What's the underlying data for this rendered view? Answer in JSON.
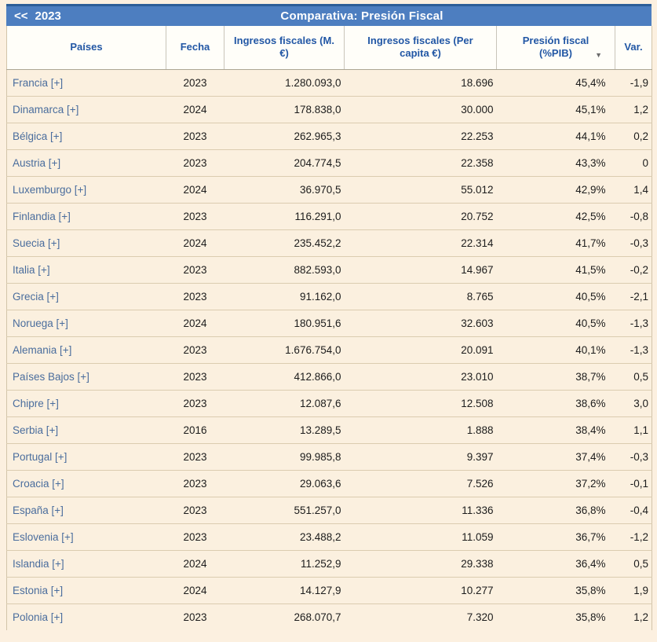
{
  "header": {
    "prev_icon": "<<",
    "year": "2023",
    "title": "Comparativa: Presión Fiscal"
  },
  "colors": {
    "bar_blue": "#4d7ec0",
    "bar_top_edge": "#2d5e98",
    "page_background": "#fcf0e0",
    "header_text_blue": "#2257a5",
    "link_blue": "#4a6d9d"
  },
  "table": {
    "columns": {
      "paises": "Países",
      "fecha": "Fecha",
      "ingresos": "Ingresos fiscales (M. €)",
      "per_capita": "Ingresos fiscales (Per capita €)",
      "presion": "Presión fiscal (%PIB)",
      "var": "Var."
    },
    "sort_icon": "▼",
    "rows": [
      {
        "country": "Francia [+]",
        "fecha": "2023",
        "ingresos": "1.280.093,0",
        "per_capita": "18.696",
        "presion": "45,4%",
        "var": "-1,9"
      },
      {
        "country": "Dinamarca [+]",
        "fecha": "2024",
        "ingresos": "178.838,0",
        "per_capita": "30.000",
        "presion": "45,1%",
        "var": "1,2"
      },
      {
        "country": "Bélgica [+]",
        "fecha": "2023",
        "ingresos": "262.965,3",
        "per_capita": "22.253",
        "presion": "44,1%",
        "var": "0,2"
      },
      {
        "country": "Austria [+]",
        "fecha": "2023",
        "ingresos": "204.774,5",
        "per_capita": "22.358",
        "presion": "43,3%",
        "var": "0"
      },
      {
        "country": "Luxemburgo [+]",
        "fecha": "2024",
        "ingresos": "36.970,5",
        "per_capita": "55.012",
        "presion": "42,9%",
        "var": "1,4"
      },
      {
        "country": "Finlandia [+]",
        "fecha": "2023",
        "ingresos": "116.291,0",
        "per_capita": "20.752",
        "presion": "42,5%",
        "var": "-0,8"
      },
      {
        "country": "Suecia [+]",
        "fecha": "2024",
        "ingresos": "235.452,2",
        "per_capita": "22.314",
        "presion": "41,7%",
        "var": "-0,3"
      },
      {
        "country": "Italia [+]",
        "fecha": "2023",
        "ingresos": "882.593,0",
        "per_capita": "14.967",
        "presion": "41,5%",
        "var": "-0,2"
      },
      {
        "country": "Grecia [+]",
        "fecha": "2023",
        "ingresos": "91.162,0",
        "per_capita": "8.765",
        "presion": "40,5%",
        "var": "-2,1"
      },
      {
        "country": "Noruega [+]",
        "fecha": "2024",
        "ingresos": "180.951,6",
        "per_capita": "32.603",
        "presion": "40,5%",
        "var": "-1,3"
      },
      {
        "country": "Alemania [+]",
        "fecha": "2023",
        "ingresos": "1.676.754,0",
        "per_capita": "20.091",
        "presion": "40,1%",
        "var": "-1,3"
      },
      {
        "country": "Países Bajos [+]",
        "fecha": "2023",
        "ingresos": "412.866,0",
        "per_capita": "23.010",
        "presion": "38,7%",
        "var": "0,5"
      },
      {
        "country": "Chipre [+]",
        "fecha": "2023",
        "ingresos": "12.087,6",
        "per_capita": "12.508",
        "presion": "38,6%",
        "var": "3,0"
      },
      {
        "country": "Serbia [+]",
        "fecha": "2016",
        "ingresos": "13.289,5",
        "per_capita": "1.888",
        "presion": "38,4%",
        "var": "1,1"
      },
      {
        "country": "Portugal [+]",
        "fecha": "2023",
        "ingresos": "99.985,8",
        "per_capita": "9.397",
        "presion": "37,4%",
        "var": "-0,3"
      },
      {
        "country": "Croacia [+]",
        "fecha": "2023",
        "ingresos": "29.063,6",
        "per_capita": "7.526",
        "presion": "37,2%",
        "var": "-0,1"
      },
      {
        "country": "España [+]",
        "fecha": "2023",
        "ingresos": "551.257,0",
        "per_capita": "11.336",
        "presion": "36,8%",
        "var": "-0,4"
      },
      {
        "country": "Eslovenia [+]",
        "fecha": "2023",
        "ingresos": "23.488,2",
        "per_capita": "11.059",
        "presion": "36,7%",
        "var": "-1,2"
      },
      {
        "country": "Islandia [+]",
        "fecha": "2024",
        "ingresos": "11.252,9",
        "per_capita": "29.338",
        "presion": "36,4%",
        "var": "0,5"
      },
      {
        "country": "Estonia [+]",
        "fecha": "2024",
        "ingresos": "14.127,9",
        "per_capita": "10.277",
        "presion": "35,8%",
        "var": "1,9"
      },
      {
        "country": "Polonia [+]",
        "fecha": "2023",
        "ingresos": "268.070,7",
        "per_capita": "7.320",
        "presion": "35,8%",
        "var": "1,2"
      }
    ]
  }
}
